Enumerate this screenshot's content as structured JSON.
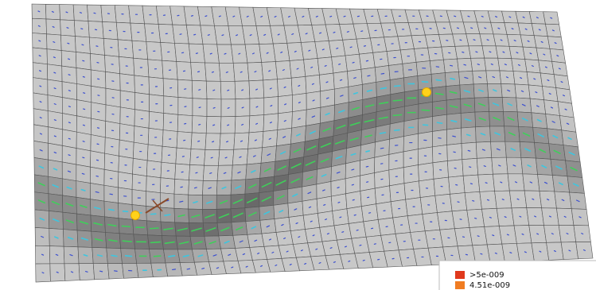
{
  "legend": {
    "items": [
      {
        "label": ">5e-009",
        "color": "#e0391c"
      },
      {
        "label": "4.51e-009",
        "color": "#f07c22"
      }
    ]
  }
}
